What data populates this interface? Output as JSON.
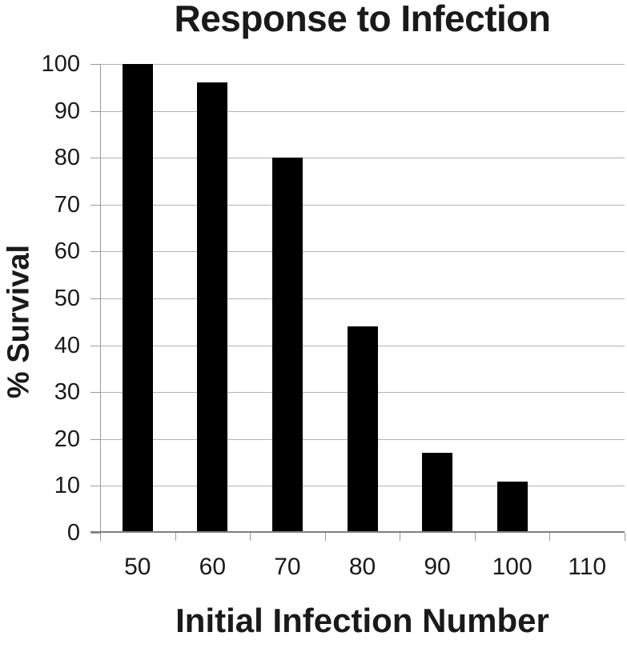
{
  "chart_data": {
    "type": "bar",
    "title": "Response to Infection",
    "xlabel": "Initial Infection Number",
    "ylabel": "% Survival",
    "categories": [
      "50",
      "60",
      "70",
      "80",
      "90",
      "100",
      "110"
    ],
    "values": [
      100,
      96,
      80,
      44,
      17,
      11,
      0
    ],
    "ylim": [
      0,
      100
    ],
    "y_ticks": [
      0,
      10,
      20,
      30,
      40,
      50,
      60,
      70,
      80,
      90,
      100
    ],
    "grid": "horizontal",
    "legend": "none",
    "colors": {
      "bar": "#000000",
      "gridline": "#b3b3b3",
      "axis": "#9a9a9a",
      "baseline": "#7f7f7f",
      "text": "#1a1a1a",
      "background": "#ffffff"
    }
  }
}
